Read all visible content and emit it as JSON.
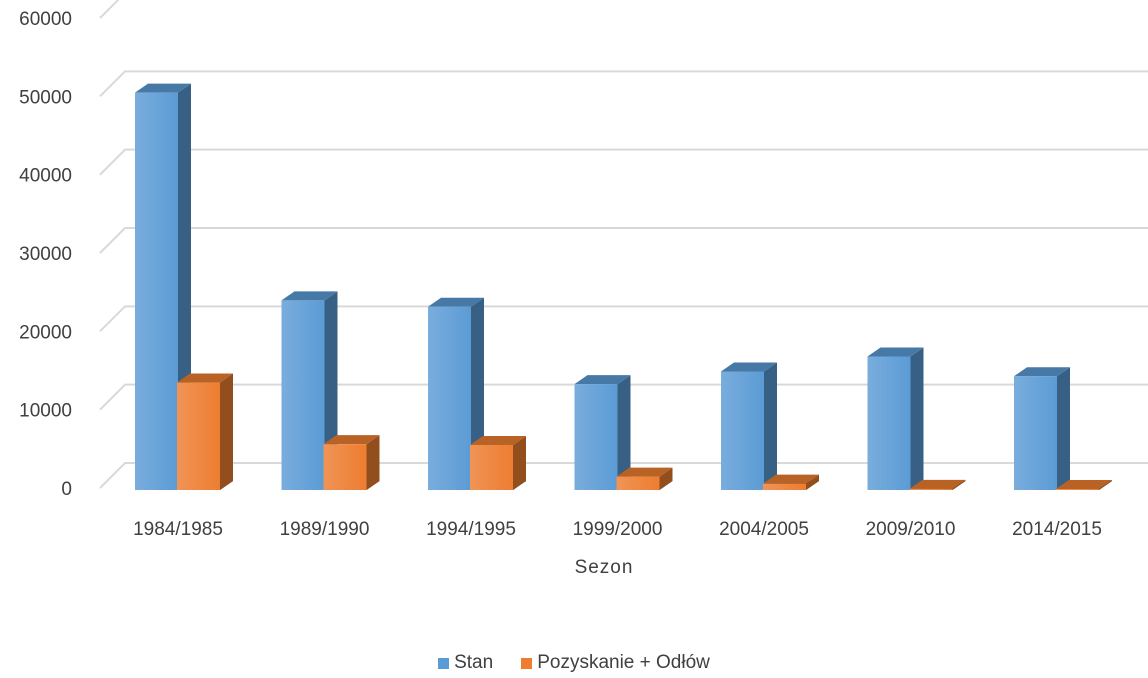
{
  "chart_data": {
    "type": "bar",
    "xlabel": "Sezon",
    "ylabel": "",
    "ylim": [
      0,
      60000
    ],
    "yticks": [
      "0",
      "10000",
      "20000",
      "30000",
      "40000",
      "50000",
      "60000"
    ],
    "grid": true,
    "legend_position": "bottom",
    "categories": [
      "1984/1985",
      "1989/1990",
      "1994/1995",
      "1999/2000",
      "2004/2005",
      "2009/2010",
      "2014/2015"
    ],
    "series": [
      {
        "name": "Stan",
        "color": "#5b9bd5",
        "values": [
          50300,
          24000,
          23200,
          13400,
          15000,
          16900,
          14400
        ]
      },
      {
        "name": "Pozyskanie + Odłów",
        "color": "#ed7d31",
        "values": [
          13600,
          5800,
          5700,
          1700,
          800,
          150,
          50
        ]
      }
    ]
  }
}
